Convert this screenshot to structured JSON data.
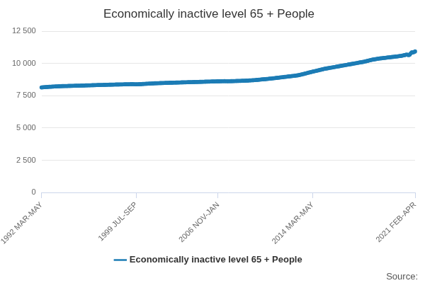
{
  "chart_data": {
    "type": "line",
    "title": "Economically inactive level 65 + People",
    "source": "Source:",
    "categories": [
      "1992 MAR-MAY",
      null,
      null,
      null,
      null,
      null,
      null,
      null,
      null,
      null,
      null,
      null,
      null,
      null,
      null,
      null,
      null,
      null,
      null,
      null,
      null,
      null,
      null,
      null,
      null,
      null,
      null,
      null,
      null,
      null,
      null,
      null,
      null,
      null,
      null,
      null,
      null,
      null,
      null,
      null,
      null,
      null,
      null,
      null,
      null,
      null,
      null,
      null,
      null,
      null,
      null,
      null,
      null,
      null,
      null,
      null,
      null,
      null,
      null,
      null,
      null,
      null,
      null,
      null,
      null,
      null,
      null,
      null,
      null,
      null,
      null,
      null,
      null,
      null,
      null,
      null,
      null,
      null,
      null,
      null,
      null,
      null,
      null,
      null,
      null,
      null,
      null,
      null,
      "1999 JUL-SEP",
      null,
      null,
      null,
      null,
      null,
      null,
      null,
      null,
      null,
      null,
      null,
      null,
      null,
      null,
      null,
      null,
      null,
      null,
      null,
      null,
      null,
      null,
      null,
      null,
      null,
      null,
      null,
      null,
      null,
      null,
      null,
      null,
      null,
      null,
      null,
      null,
      null,
      null,
      null,
      null,
      null,
      null,
      null,
      null,
      null,
      null,
      null,
      null,
      null,
      null,
      null,
      null,
      null,
      null,
      null,
      null,
      null,
      null,
      null,
      null,
      null,
      null,
      null,
      null,
      null,
      null,
      null,
      null,
      null,
      null,
      null,
      null,
      null,
      null,
      null,
      "2006 NOV-JAN",
      null,
      null,
      null,
      null,
      null,
      null,
      null,
      null,
      null,
      null,
      null,
      null,
      null,
      null,
      null,
      null,
      null,
      null,
      null,
      null,
      null,
      null,
      null,
      null,
      null,
      null,
      null,
      null,
      null,
      null,
      null,
      null,
      null,
      null,
      null,
      null,
      null,
      null,
      null,
      null,
      null,
      null,
      null,
      null,
      null,
      null,
      null,
      null,
      null,
      null,
      null,
      null,
      null,
      null,
      null,
      null,
      null,
      null,
      null,
      null,
      null,
      null,
      null,
      null,
      null,
      null,
      null,
      null,
      null,
      null,
      null,
      null,
      null,
      null,
      null,
      null,
      null,
      null,
      null,
      null,
      null,
      null,
      null,
      null,
      null,
      null,
      null,
      "2014 MAR-MAY",
      null,
      null,
      null,
      null,
      null,
      null,
      null,
      null,
      null,
      null,
      null,
      null,
      null,
      null,
      null,
      null,
      null,
      null,
      null,
      null,
      null,
      null,
      null,
      null,
      null,
      null,
      null,
      null,
      null,
      null,
      null,
      null,
      null,
      null,
      null,
      null,
      null,
      null,
      null,
      null,
      null,
      null,
      null,
      null,
      null,
      null,
      null,
      null,
      null,
      null,
      null,
      null,
      null,
      null,
      null,
      null,
      null,
      null,
      null,
      null,
      null,
      null,
      null,
      null,
      null,
      null,
      null,
      null,
      null,
      null,
      null,
      null,
      null,
      null,
      null,
      null,
      null,
      null,
      null,
      null,
      null,
      null,
      null,
      null,
      null,
      null,
      null,
      null,
      null,
      null,
      null,
      null,
      null,
      null,
      "2021 FEB-APR"
    ],
    "series": [
      {
        "name": "Economically inactive level 65 + People",
        "color": "#1c7cb5",
        "marker": "circle",
        "line_style": "solid",
        "values": [
          8150,
          8160,
          8170,
          8175,
          8185,
          8190,
          8195,
          8200,
          8205,
          8210,
          8215,
          8220,
          8225,
          8230,
          8235,
          8240,
          8245,
          8250,
          8250,
          8255,
          8255,
          8260,
          8260,
          8262,
          8265,
          8268,
          8270,
          8272,
          8275,
          8278,
          8280,
          8283,
          8285,
          8290,
          8290,
          8292,
          8295,
          8298,
          8300,
          8303,
          8306,
          8310,
          8313,
          8316,
          8318,
          8320,
          8322,
          8325,
          8328,
          8330,
          8333,
          8336,
          8338,
          8340,
          8343,
          8346,
          8348,
          8350,
          8352,
          8355,
          8357,
          8360,
          8362,
          8364,
          8366,
          8368,
          8370,
          8372,
          8375,
          8378,
          8378,
          8380,
          8382,
          8384,
          8386,
          8388,
          8390,
          8392,
          8395,
          8398,
          8400,
          8402,
          8405,
          8408,
          8410,
          8408,
          8405,
          8402,
          8400,
          8402,
          8405,
          8408,
          8410,
          8415,
          8420,
          8425,
          8430,
          8435,
          8440,
          8445,
          8450,
          8455,
          8460,
          8465,
          8470,
          8475,
          8478,
          8480,
          8483,
          8486,
          8489,
          8492,
          8495,
          8498,
          8500,
          8503,
          8506,
          8510,
          8512,
          8515,
          8518,
          8520,
          8523,
          8526,
          8528,
          8530,
          8533,
          8536,
          8538,
          8540,
          8543,
          8546,
          8548,
          8550,
          8553,
          8556,
          8558,
          8560,
          8563,
          8566,
          8568,
          8570,
          8573,
          8576,
          8578,
          8580,
          8583,
          8586,
          8588,
          8590,
          8593,
          8596,
          8598,
          8600,
          8603,
          8606,
          8608,
          8610,
          8613,
          8616,
          8618,
          8620,
          8623,
          8626,
          8628,
          8630,
          8632,
          8634,
          8636,
          8638,
          8640,
          8638,
          8636,
          8635,
          8636,
          8638,
          8640,
          8643,
          8645,
          8648,
          8650,
          8653,
          8656,
          8658,
          8660,
          8663,
          8666,
          8670,
          8673,
          8676,
          8680,
          8685,
          8690,
          8695,
          8700,
          8705,
          8710,
          8715,
          8720,
          8728,
          8736,
          8745,
          8752,
          8760,
          8768,
          8776,
          8784,
          8792,
          8800,
          8808,
          8816,
          8825,
          8834,
          8842,
          8850,
          8860,
          8870,
          8880,
          8890,
          8900,
          8910,
          8920,
          8930,
          8940,
          8950,
          8960,
          8970,
          8980,
          8990,
          9000,
          9010,
          9020,
          9030,
          9040,
          9050,
          9060,
          9070,
          9080,
          9095,
          9110,
          9130,
          9150,
          9170,
          9190,
          9210,
          9230,
          9255,
          9280,
          9300,
          9320,
          9340,
          9360,
          9380,
          9400,
          9420,
          9440,
          9460,
          9480,
          9500,
          9520,
          9540,
          9560,
          9580,
          9600,
          9615,
          9630,
          9645,
          9660,
          9675,
          9690,
          9705,
          9720,
          9735,
          9750,
          9765,
          9780,
          9795,
          9810,
          9825,
          9840,
          9855,
          9870,
          9885,
          9900,
          9915,
          9930,
          9945,
          9960,
          9975,
          9990,
          10005,
          10020,
          10035,
          10050,
          10065,
          10080,
          10095,
          10110,
          10125,
          10140,
          10160,
          10180,
          10200,
          10220,
          10240,
          10260,
          10280,
          10300,
          10315,
          10330,
          10345,
          10360,
          10375,
          10390,
          10400,
          10410,
          10420,
          10430,
          10440,
          10450,
          10460,
          10470,
          10480,
          10490,
          10500,
          10510,
          10520,
          10530,
          10540,
          10550,
          10560,
          10570,
          10580,
          10590,
          10600,
          10620,
          10640,
          10660,
          10680,
          10700,
          10690,
          10660,
          10700,
          10800,
          10880,
          10870,
          10900,
          10950
        ]
      }
    ],
    "ylim": [
      0,
      12500
    ],
    "yticks": [
      0,
      {
        "value": 2500,
        "label": "2 500"
      },
      {
        "value": 5000,
        "label": "5 000"
      },
      {
        "value": 7500,
        "label": "7 500"
      },
      {
        "value": 10000,
        "label": "10 000"
      },
      {
        "value": 12500,
        "label": "12 500"
      }
    ],
    "grid": true,
    "legend": "bottom"
  }
}
